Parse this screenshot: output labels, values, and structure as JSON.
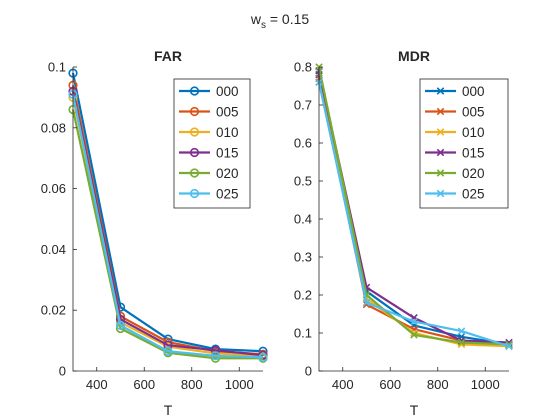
{
  "figure": {
    "suptitle_main": "w",
    "suptitle_sub": "s",
    "suptitle_rest": " = 0.15"
  },
  "chart_data": [
    {
      "type": "line",
      "title": "FAR",
      "xlabel": "T",
      "ylabel": "",
      "xlim": [
        300,
        1100
      ],
      "ylim": [
        0,
        0.1
      ],
      "xticks": [
        400,
        600,
        800,
        1000
      ],
      "xtick_labels": [
        "400",
        "600",
        "800",
        "1000"
      ],
      "yticks": [
        0,
        0.02,
        0.04,
        0.06,
        0.08,
        0.1
      ],
      "ytick_labels": [
        "0",
        "0.02",
        "0.04",
        "0.06",
        "0.08",
        "0.1"
      ],
      "marker": "circle",
      "legend_position": "top-right",
      "x": [
        300,
        500,
        700,
        900,
        1100
      ],
      "series": [
        {
          "name": "000",
          "color": "#0072BD",
          "values": [
            0.098,
            0.021,
            0.0105,
            0.0072,
            0.0065
          ]
        },
        {
          "name": "005",
          "color": "#D95319",
          "values": [
            0.094,
            0.018,
            0.0095,
            0.0065,
            0.0055
          ]
        },
        {
          "name": "010",
          "color": "#EDB120",
          "values": [
            0.09,
            0.016,
            0.008,
            0.0058,
            0.005
          ]
        },
        {
          "name": "015",
          "color": "#7E2F8E",
          "values": [
            0.092,
            0.017,
            0.0085,
            0.0068,
            0.0052
          ]
        },
        {
          "name": "020",
          "color": "#77AC30",
          "values": [
            0.086,
            0.014,
            0.006,
            0.0042,
            0.0042
          ]
        },
        {
          "name": "025",
          "color": "#4DBEEE",
          "values": [
            0.091,
            0.015,
            0.0065,
            0.005,
            0.0045
          ]
        }
      ]
    },
    {
      "type": "line",
      "title": "MDR",
      "xlabel": "T",
      "ylabel": "",
      "xlim": [
        300,
        1100
      ],
      "ylim": [
        0,
        0.8
      ],
      "xticks": [
        400,
        600,
        800,
        1000
      ],
      "xtick_labels": [
        "400",
        "600",
        "800",
        "1000"
      ],
      "yticks": [
        0,
        0.1,
        0.2,
        0.3,
        0.4,
        0.5,
        0.6,
        0.7,
        0.8
      ],
      "ytick_labels": [
        "0",
        "0.1",
        "0.2",
        "0.3",
        "0.4",
        "0.5",
        "0.6",
        "0.7",
        "0.8"
      ],
      "marker": "x",
      "legend_position": "top-right",
      "x": [
        300,
        500,
        700,
        900,
        1100
      ],
      "series": [
        {
          "name": "000",
          "color": "#0072BD",
          "values": [
            0.78,
            0.21,
            0.12,
            0.09,
            0.07
          ]
        },
        {
          "name": "005",
          "color": "#D95319",
          "values": [
            0.77,
            0.175,
            0.11,
            0.08,
            0.068
          ]
        },
        {
          "name": "010",
          "color": "#EDB120",
          "values": [
            0.76,
            0.19,
            0.1,
            0.07,
            0.065
          ]
        },
        {
          "name": "015",
          "color": "#7E2F8E",
          "values": [
            0.79,
            0.22,
            0.14,
            0.08,
            0.075
          ]
        },
        {
          "name": "020",
          "color": "#77AC30",
          "values": [
            0.8,
            0.2,
            0.095,
            0.075,
            0.07
          ]
        },
        {
          "name": "025",
          "color": "#4DBEEE",
          "values": [
            0.76,
            0.18,
            0.13,
            0.105,
            0.065
          ]
        }
      ]
    }
  ]
}
